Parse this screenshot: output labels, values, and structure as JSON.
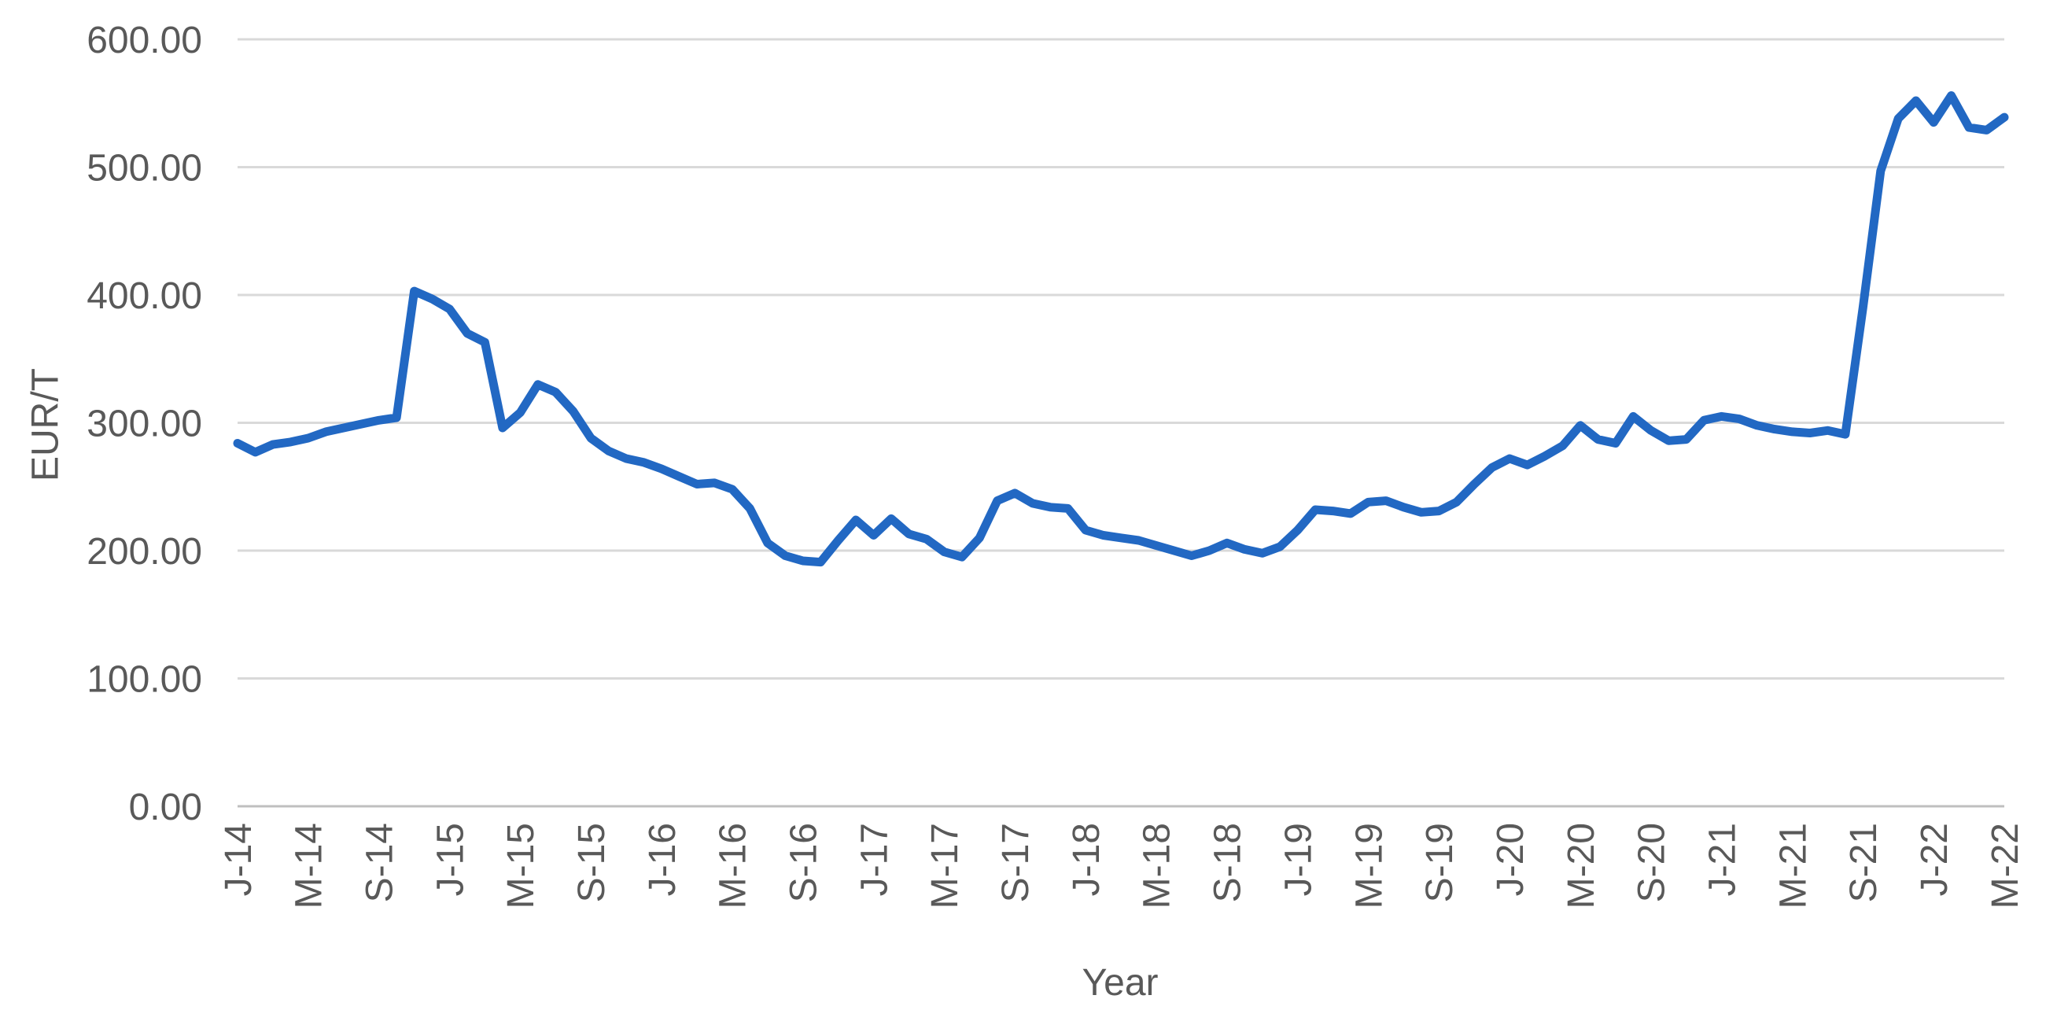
{
  "chart_data": {
    "type": "line",
    "title": "",
    "xlabel": "Year",
    "ylabel": "EUR/T",
    "ylim": [
      0,
      600
    ],
    "ytick_interval": 100,
    "ytick_labels": [
      "0.00",
      "100.00",
      "200.00",
      "300.00",
      "400.00",
      "500.00",
      "600.00"
    ],
    "xtick_labels": [
      "J-14",
      "M-14",
      "S-14",
      "J-15",
      "M-15",
      "S-15",
      "J-16",
      "M-16",
      "S-16",
      "J-17",
      "M-17",
      "S-17",
      "J-18",
      "M-18",
      "S-18",
      "J-19",
      "M-19",
      "S-19",
      "J-20",
      "M-20",
      "S-20",
      "J-21",
      "M-21",
      "S-21",
      "J-22",
      "M-22"
    ],
    "points_per_tick": 4,
    "frequency": "monthly",
    "x_start": "Jan-2014",
    "x_end": "May-2022",
    "grid": true,
    "legend": "none",
    "line_color": "#2268c3",
    "values": [
      284,
      277,
      283,
      285,
      288,
      293,
      296,
      299,
      302,
      304,
      403,
      397,
      389,
      370,
      363,
      296,
      308,
      330,
      324,
      309,
      288,
      278,
      272,
      269,
      264,
      258,
      252,
      253,
      248,
      233,
      206,
      196,
      192,
      191,
      208,
      224,
      212,
      225,
      213,
      209,
      199,
      195,
      210,
      239,
      245,
      237,
      234,
      233,
      216,
      212,
      210,
      208,
      204,
      200,
      196,
      200,
      206,
      201,
      198,
      203,
      216,
      232,
      231,
      229,
      238,
      239,
      234,
      230,
      231,
      238,
      252,
      265,
      272,
      267,
      274,
      282,
      298,
      287,
      284,
      305,
      294,
      286,
      287,
      302,
      305,
      303,
      298,
      295,
      293,
      292,
      294,
      291,
      390,
      497,
      538,
      552,
      535,
      556,
      531,
      529,
      539
    ]
  },
  "colors": {
    "background": "#ffffff",
    "text": "#595959",
    "gridline": "#d9d9d9",
    "axis_line": "#bfbfbf",
    "line": "#2268c3"
  }
}
